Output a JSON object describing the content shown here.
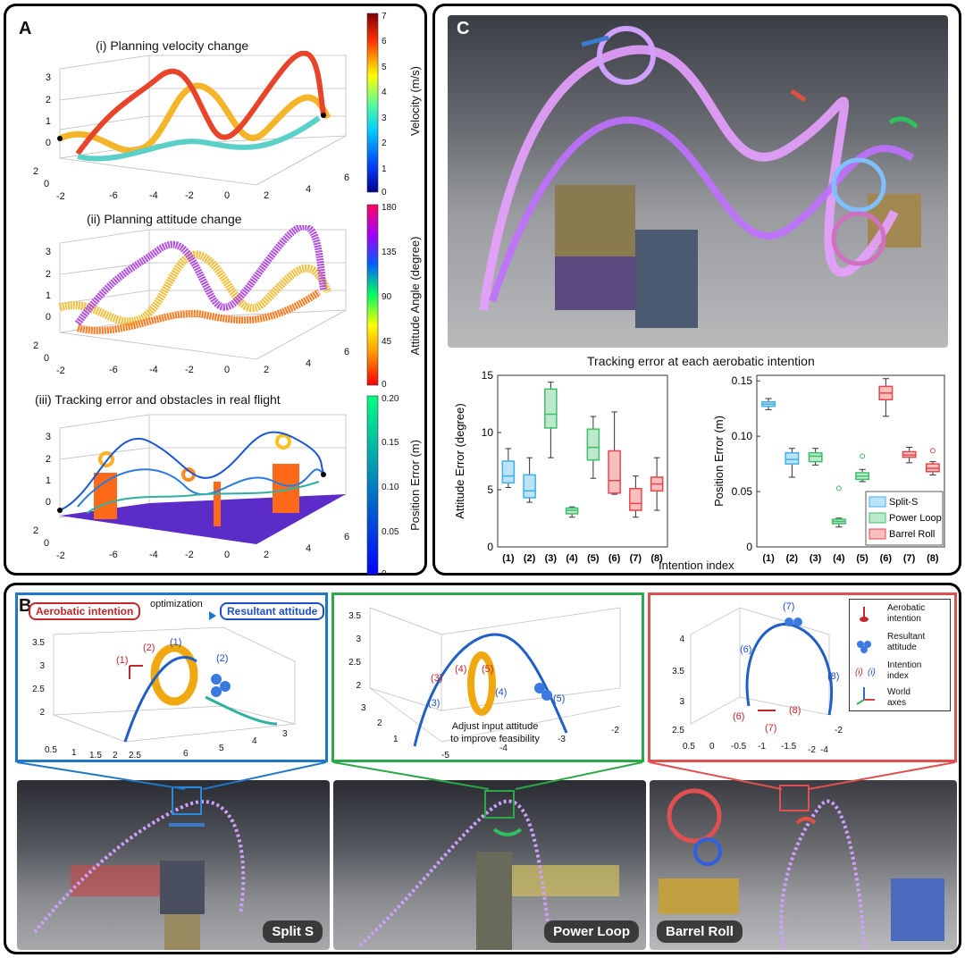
{
  "panelA": {
    "label": "A",
    "sub1_title": "(i) Planning velocity change",
    "sub2_title": "(ii) Planning attitude change",
    "sub3_title": "(iii) Tracking error and obstacles in real flight",
    "cb1": {
      "label": "Velocity (m/s)",
      "ticks": [
        "7",
        "6",
        "5",
        "4",
        "3",
        "2",
        "1",
        "0"
      ]
    },
    "cb2": {
      "label": "Attitude Angle (degree)",
      "ticks": [
        "180",
        "135",
        "90",
        "45",
        "0"
      ]
    },
    "cb3": {
      "label": "Position Error (m)",
      "ticks": [
        "0.20",
        "0.15",
        "0.10",
        "0.05",
        "0"
      ]
    },
    "z_ticks": [
      "3",
      "2",
      "1",
      "0"
    ],
    "x_ticks": [
      "-6",
      "-4",
      "-2",
      "0",
      "2",
      "4",
      "6"
    ],
    "y_ticks": [
      "2",
      "0",
      "-2"
    ]
  },
  "panelC": {
    "label": "C",
    "chart_title": "Tracking error at each aerobatic intention",
    "xlabel": "Intention index",
    "legend": [
      "Split-S",
      "Power Loop",
      "Barrel Roll"
    ]
  },
  "panelB": {
    "label": "B",
    "intention_label": "Aerobatic intention",
    "optimization_label": "optimization",
    "resultant_label": "Resultant attitude",
    "annotation": "Adjust input attitude\nto improve feasibility",
    "photo1_label": "Split S",
    "photo2_label": "Power Loop",
    "photo3_label": "Barrel Roll",
    "legend": {
      "intention": "Aerobatic\nintention",
      "resultant": "Resultant\nattitude",
      "index_symbol": "(i)",
      "index_symbol2": "(i)",
      "index": "Intention\nindex",
      "axes": "World\naxes"
    },
    "s1": {
      "z_ticks": [
        "3.5",
        "3",
        "2.5",
        "2"
      ],
      "x_ticks": [
        "0.5",
        "1",
        "1.5",
        "2",
        "2.5"
      ],
      "y_ticks": [
        "6",
        "5",
        "4",
        "3"
      ],
      "labels": [
        "(1)",
        "(2)",
        "(1)",
        "(2)"
      ]
    },
    "s2": {
      "z_ticks": [
        "3.5",
        "3",
        "2.5",
        "2"
      ],
      "x_ticks": [
        "-5",
        "-4",
        "-3",
        "-2"
      ],
      "y_ticks": [
        "3",
        "2",
        "1"
      ],
      "labels": [
        "(3)",
        "(4)",
        "(5)",
        "(3)",
        "(4)",
        "(5)"
      ]
    },
    "s3": {
      "z_ticks": [
        "4",
        "3.5",
        "3",
        "2.5"
      ],
      "x_ticks": [
        "0.5",
        "0",
        "-0.5",
        "-1",
        "-1.5",
        "-2"
      ],
      "y_ticks": [
        "-2",
        "-4"
      ],
      "labels": [
        "(7)",
        "(6)",
        "(8)",
        "(6)",
        "(7)",
        "(8)"
      ]
    }
  },
  "chart_data": [
    {
      "type": "box",
      "ylabel": "Attitude Error (degree)",
      "xlabel": "Intention index",
      "categories": [
        "(1)",
        "(2)",
        "(3)",
        "(4)",
        "(5)",
        "(6)",
        "(7)",
        "(8)"
      ],
      "ylim": [
        0,
        15
      ],
      "yticks": [
        0,
        5,
        10,
        15
      ],
      "groups": [
        "Split-S",
        "Split-S",
        "Power Loop",
        "Power Loop",
        "Power Loop",
        "Barrel Roll",
        "Barrel Roll",
        "Barrel Roll"
      ],
      "boxes": [
        {
          "min": 5.2,
          "q1": 5.6,
          "median": 6.2,
          "q3": 7.5,
          "max": 8.6
        },
        {
          "min": 3.9,
          "q1": 4.3,
          "median": 4.9,
          "q3": 6.3,
          "max": 7.8
        },
        {
          "min": 7.8,
          "q1": 10.4,
          "median": 11.6,
          "q3": 13.8,
          "max": 14.4
        },
        {
          "min": 2.6,
          "q1": 2.9,
          "median": 3.2,
          "q3": 3.4,
          "max": 3.5
        },
        {
          "min": 6.0,
          "q1": 7.6,
          "median": 8.7,
          "q3": 10.3,
          "max": 11.4
        },
        {
          "min": 4.6,
          "q1": 4.7,
          "median": 5.8,
          "q3": 8.4,
          "max": 11.8
        },
        {
          "min": 2.6,
          "q1": 3.2,
          "median": 3.8,
          "q3": 5.1,
          "max": 6.2
        },
        {
          "min": 3.2,
          "q1": 4.9,
          "median": 5.5,
          "q3": 6.1,
          "max": 7.8
        }
      ]
    },
    {
      "type": "box",
      "ylabel": "Position Error (m)",
      "xlabel": "Intention index",
      "categories": [
        "(1)",
        "(2)",
        "(3)",
        "(4)",
        "(5)",
        "(6)",
        "(7)",
        "(8)"
      ],
      "ylim": [
        0,
        0.155
      ],
      "yticks": [
        0,
        0.05,
        0.1,
        0.15
      ],
      "ytick_labels": [
        "0",
        "0.05",
        "0.10",
        "0.15"
      ],
      "groups": [
        "Split-S",
        "Split-S",
        "Power Loop",
        "Power Loop",
        "Power Loop",
        "Barrel Roll",
        "Barrel Roll",
        "Barrel Roll"
      ],
      "boxes": [
        {
          "min": 0.124,
          "q1": 0.127,
          "median": 0.129,
          "q3": 0.131,
          "max": 0.134
        },
        {
          "min": 0.063,
          "q1": 0.075,
          "median": 0.079,
          "q3": 0.085,
          "max": 0.089
        },
        {
          "min": 0.074,
          "q1": 0.077,
          "median": 0.082,
          "q3": 0.085,
          "max": 0.089
        },
        {
          "min": 0.018,
          "q1": 0.021,
          "median": 0.023,
          "q3": 0.025,
          "max": 0.026,
          "outliers": [
            0.053
          ]
        },
        {
          "min": 0.059,
          "q1": 0.061,
          "median": 0.064,
          "q3": 0.067,
          "max": 0.07,
          "outliers": [
            0.082
          ]
        },
        {
          "min": 0.118,
          "q1": 0.133,
          "median": 0.139,
          "q3": 0.145,
          "max": 0.152
        },
        {
          "min": 0.076,
          "q1": 0.081,
          "median": 0.083,
          "q3": 0.086,
          "max": 0.09
        },
        {
          "min": 0.065,
          "q1": 0.068,
          "median": 0.071,
          "q3": 0.075,
          "max": 0.077,
          "outliers": [
            0.087
          ]
        }
      ]
    }
  ],
  "colors": {
    "splitS": "#3fb0e8",
    "powerLoop": "#3fbf6a",
    "barrelRoll": "#e8474a",
    "panelB1": "#1f78c8",
    "panelB2": "#2aa84a",
    "panelB3": "#e05050"
  }
}
